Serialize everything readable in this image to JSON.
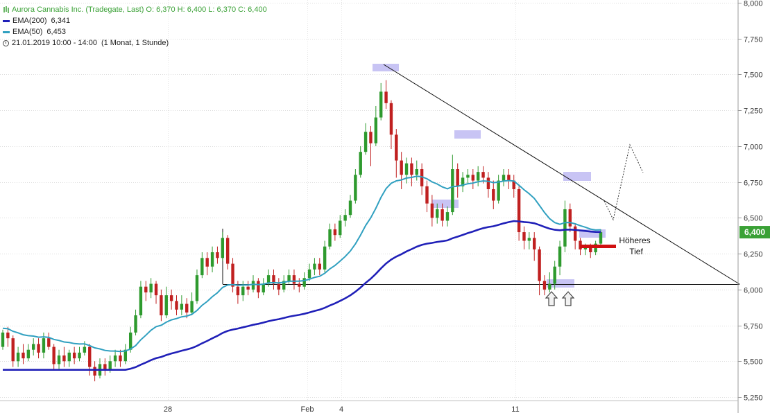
{
  "legend": {
    "title": "Aurora Cannabis Inc. (Tradegate, Last)  O: 6,370  H: 6,400  L: 6,370  C: 6,400",
    "ema200_label": "EMA(200)",
    "ema200_value": "6,341",
    "ema50_label": "EMA(50)",
    "ema50_value": "6,453",
    "timestamp": "21.01.2019 10:00 - 14:00",
    "range": "(1 Monat, 1 Stunde)"
  },
  "colors": {
    "up": "#2e9a2e",
    "down": "#c02020",
    "ema200": "#2020b8",
    "ema50": "#30a0c0",
    "highlight": "#c8c4f4",
    "last_price_bg": "#3aa136",
    "higher_low_bar": "#d01010"
  },
  "annotation": {
    "higher_low_line1": "Höheres",
    "higher_low_line2": "Tief"
  },
  "chart_data": {
    "type": "candlestick",
    "y_ticks": [
      "8,000",
      "7,750",
      "7,500",
      "7,250",
      "7,000",
      "6,750",
      "6,500",
      "6,250",
      "6,000",
      "5,750",
      "5,500",
      "5,250"
    ],
    "ylim": [
      5.2,
      8.0
    ],
    "x_ticks": [
      "28",
      "Feb",
      "4",
      "11"
    ],
    "last_price": "6,400",
    "ema200": {
      "name": "EMA(200)",
      "last": 6.341
    },
    "ema50": {
      "name": "EMA(50)",
      "last": 6.453
    },
    "candles": [
      [
        5.6,
        5.7,
        5.72,
        5.58
      ],
      [
        5.7,
        5.66,
        5.74,
        5.6
      ],
      [
        5.66,
        5.5,
        5.68,
        5.46
      ],
      [
        5.5,
        5.56,
        5.6,
        5.46
      ],
      [
        5.56,
        5.52,
        5.62,
        5.48
      ],
      [
        5.52,
        5.58,
        5.62,
        5.5
      ],
      [
        5.58,
        5.62,
        5.66,
        5.54
      ],
      [
        5.62,
        5.56,
        5.66,
        5.52
      ],
      [
        5.56,
        5.66,
        5.7,
        5.52
      ],
      [
        5.66,
        5.6,
        5.7,
        5.58
      ],
      [
        5.6,
        5.48,
        5.62,
        5.44
      ],
      [
        5.48,
        5.54,
        5.58,
        5.44
      ],
      [
        5.54,
        5.5,
        5.6,
        5.46
      ],
      [
        5.5,
        5.56,
        5.58,
        5.46
      ],
      [
        5.56,
        5.52,
        5.6,
        5.48
      ],
      [
        5.52,
        5.56,
        5.6,
        5.5
      ],
      [
        5.56,
        5.6,
        5.64,
        5.54
      ],
      [
        5.6,
        5.46,
        5.62,
        5.4
      ],
      [
        5.46,
        5.4,
        5.5,
        5.36
      ],
      [
        5.4,
        5.48,
        5.52,
        5.38
      ],
      [
        5.48,
        5.44,
        5.52,
        5.4
      ],
      [
        5.44,
        5.5,
        5.54,
        5.42
      ],
      [
        5.5,
        5.54,
        5.58,
        5.46
      ],
      [
        5.54,
        5.5,
        5.58,
        5.46
      ],
      [
        5.5,
        5.58,
        5.62,
        5.48
      ],
      [
        5.58,
        5.7,
        5.74,
        5.56
      ],
      [
        5.7,
        5.82,
        5.86,
        5.68
      ],
      [
        5.82,
        6.02,
        6.06,
        5.8
      ],
      [
        6.02,
        5.98,
        6.06,
        5.92
      ],
      [
        5.98,
        6.04,
        6.08,
        5.94
      ],
      [
        6.04,
        5.96,
        6.06,
        5.9
      ],
      [
        5.96,
        5.82,
        6.0,
        5.78
      ],
      [
        5.82,
        5.96,
        6.02,
        5.8
      ],
      [
        5.96,
        5.92,
        6.0,
        5.86
      ],
      [
        5.92,
        5.86,
        5.96,
        5.82
      ],
      [
        5.86,
        5.9,
        5.96,
        5.82
      ],
      [
        5.9,
        5.84,
        5.94,
        5.8
      ],
      [
        5.84,
        5.92,
        5.98,
        5.82
      ],
      [
        5.92,
        6.1,
        6.14,
        5.9
      ],
      [
        6.1,
        6.22,
        6.26,
        6.08
      ],
      [
        6.22,
        6.16,
        6.26,
        6.1
      ],
      [
        6.16,
        6.26,
        6.3,
        6.12
      ],
      [
        6.26,
        6.22,
        6.3,
        6.18
      ],
      [
        6.22,
        6.36,
        6.4,
        6.2
      ],
      [
        6.36,
        6.18,
        6.38,
        6.14
      ],
      [
        6.18,
        6.02,
        6.22,
        5.98
      ],
      [
        6.02,
        5.96,
        6.06,
        5.9
      ],
      [
        5.96,
        6.02,
        6.06,
        5.92
      ],
      [
        6.02,
        6.0,
        6.06,
        5.96
      ],
      [
        6.0,
        6.06,
        6.1,
        5.98
      ],
      [
        6.06,
        5.98,
        6.08,
        5.94
      ],
      [
        5.98,
        6.04,
        6.08,
        5.96
      ],
      [
        6.04,
        6.1,
        6.14,
        6.02
      ],
      [
        6.1,
        6.04,
        6.14,
        6.0
      ],
      [
        6.04,
        6.0,
        6.08,
        5.96
      ],
      [
        6.0,
        6.06,
        6.1,
        5.98
      ],
      [
        6.06,
        6.1,
        6.14,
        6.04
      ],
      [
        6.1,
        6.04,
        6.14,
        6.0
      ],
      [
        6.04,
        6.02,
        6.08,
        5.98
      ],
      [
        6.02,
        6.08,
        6.12,
        6.0
      ],
      [
        6.08,
        6.14,
        6.18,
        6.06
      ],
      [
        6.14,
        6.18,
        6.22,
        6.1
      ],
      [
        6.18,
        6.14,
        6.22,
        6.1
      ],
      [
        6.14,
        6.3,
        6.34,
        6.12
      ],
      [
        6.3,
        6.42,
        6.46,
        6.28
      ],
      [
        6.42,
        6.38,
        6.46,
        6.34
      ],
      [
        6.38,
        6.48,
        6.52,
        6.36
      ],
      [
        6.48,
        6.52,
        6.56,
        6.44
      ],
      [
        6.52,
        6.62,
        6.66,
        6.5
      ],
      [
        6.62,
        6.8,
        6.84,
        6.6
      ],
      [
        6.8,
        6.96,
        7.0,
        6.78
      ],
      [
        6.96,
        7.1,
        7.16,
        6.94
      ],
      [
        7.1,
        7.02,
        7.14,
        6.86
      ],
      [
        7.02,
        7.2,
        7.28,
        7.0
      ],
      [
        7.2,
        7.38,
        7.44,
        7.18
      ],
      [
        7.38,
        7.3,
        7.46,
        7.26
      ],
      [
        7.3,
        7.08,
        7.32,
        6.98
      ],
      [
        7.08,
        6.9,
        7.12,
        6.78
      ],
      [
        6.9,
        6.8,
        6.96,
        6.7
      ],
      [
        6.8,
        6.88,
        6.92,
        6.74
      ],
      [
        6.88,
        6.8,
        6.92,
        6.72
      ],
      [
        6.8,
        6.84,
        6.9,
        6.76
      ],
      [
        6.84,
        6.72,
        6.88,
        6.66
      ],
      [
        6.72,
        6.6,
        6.76,
        6.54
      ],
      [
        6.6,
        6.5,
        6.66,
        6.44
      ],
      [
        6.5,
        6.56,
        6.6,
        6.46
      ],
      [
        6.56,
        6.48,
        6.6,
        6.44
      ],
      [
        6.48,
        6.54,
        6.58,
        6.44
      ],
      [
        6.54,
        6.84,
        6.94,
        6.52
      ],
      [
        6.84,
        6.72,
        6.88,
        6.64
      ],
      [
        6.72,
        6.78,
        6.82,
        6.68
      ],
      [
        6.78,
        6.8,
        6.84,
        6.74
      ],
      [
        6.8,
        6.76,
        6.84,
        6.7
      ],
      [
        6.76,
        6.82,
        6.86,
        6.72
      ],
      [
        6.82,
        6.78,
        6.86,
        6.74
      ],
      [
        6.78,
        6.7,
        6.82,
        6.64
      ],
      [
        6.7,
        6.62,
        6.76,
        6.56
      ],
      [
        6.62,
        6.76,
        6.8,
        6.6
      ],
      [
        6.76,
        6.8,
        6.84,
        6.72
      ],
      [
        6.8,
        6.76,
        6.84,
        6.7
      ],
      [
        6.76,
        6.7,
        6.8,
        6.64
      ],
      [
        6.7,
        6.4,
        6.72,
        6.34
      ],
      [
        6.4,
        6.34,
        6.44,
        6.28
      ],
      [
        6.34,
        6.36,
        6.4,
        6.28
      ],
      [
        6.36,
        6.28,
        6.4,
        6.2
      ],
      [
        6.28,
        6.06,
        6.3,
        5.96
      ],
      [
        6.06,
        6.0,
        6.1,
        5.96
      ],
      [
        6.0,
        6.04,
        6.12,
        5.98
      ],
      [
        6.04,
        6.16,
        6.2,
        6.0
      ],
      [
        6.16,
        6.3,
        6.34,
        6.1
      ],
      [
        6.3,
        6.56,
        6.62,
        6.26
      ],
      [
        6.56,
        6.44,
        6.6,
        6.4
      ],
      [
        6.44,
        6.34,
        6.46,
        6.28
      ],
      [
        6.34,
        6.28,
        6.36,
        6.24
      ],
      [
        6.28,
        6.3,
        6.32,
        6.24
      ],
      [
        6.3,
        6.26,
        6.32,
        6.22
      ],
      [
        6.26,
        6.32,
        6.34,
        6.24
      ],
      [
        6.32,
        6.4,
        6.42,
        6.3
      ]
    ]
  }
}
